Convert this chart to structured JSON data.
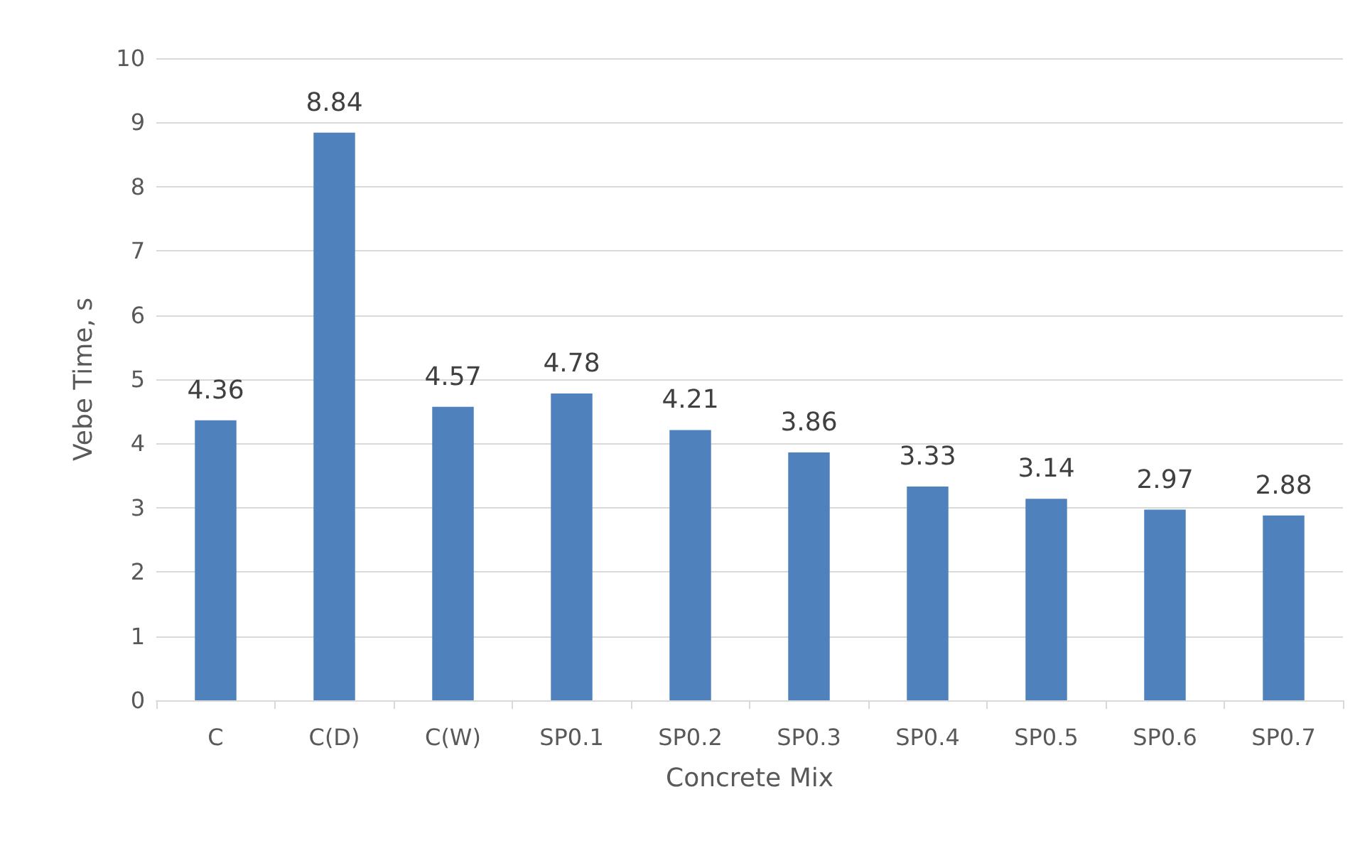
{
  "chart_data": {
    "type": "bar",
    "xlabel": "Concrete Mix",
    "ylabel": "Vebe Time, s",
    "categories": [
      "C",
      "C(D)",
      "C(W)",
      "SP0.1",
      "SP0.2",
      "SP0.3",
      "SP0.4",
      "SP0.5",
      "SP0.6",
      "SP0.7"
    ],
    "values": [
      4.36,
      8.84,
      4.57,
      4.78,
      4.21,
      3.86,
      3.33,
      3.14,
      2.97,
      2.88
    ],
    "color": "#4f81bd",
    "ylim": [
      0,
      10
    ],
    "yticks": [
      0,
      1,
      2,
      3,
      4,
      5,
      6,
      7,
      8,
      9,
      10
    ],
    "grid": "y",
    "data_labels": true
  }
}
